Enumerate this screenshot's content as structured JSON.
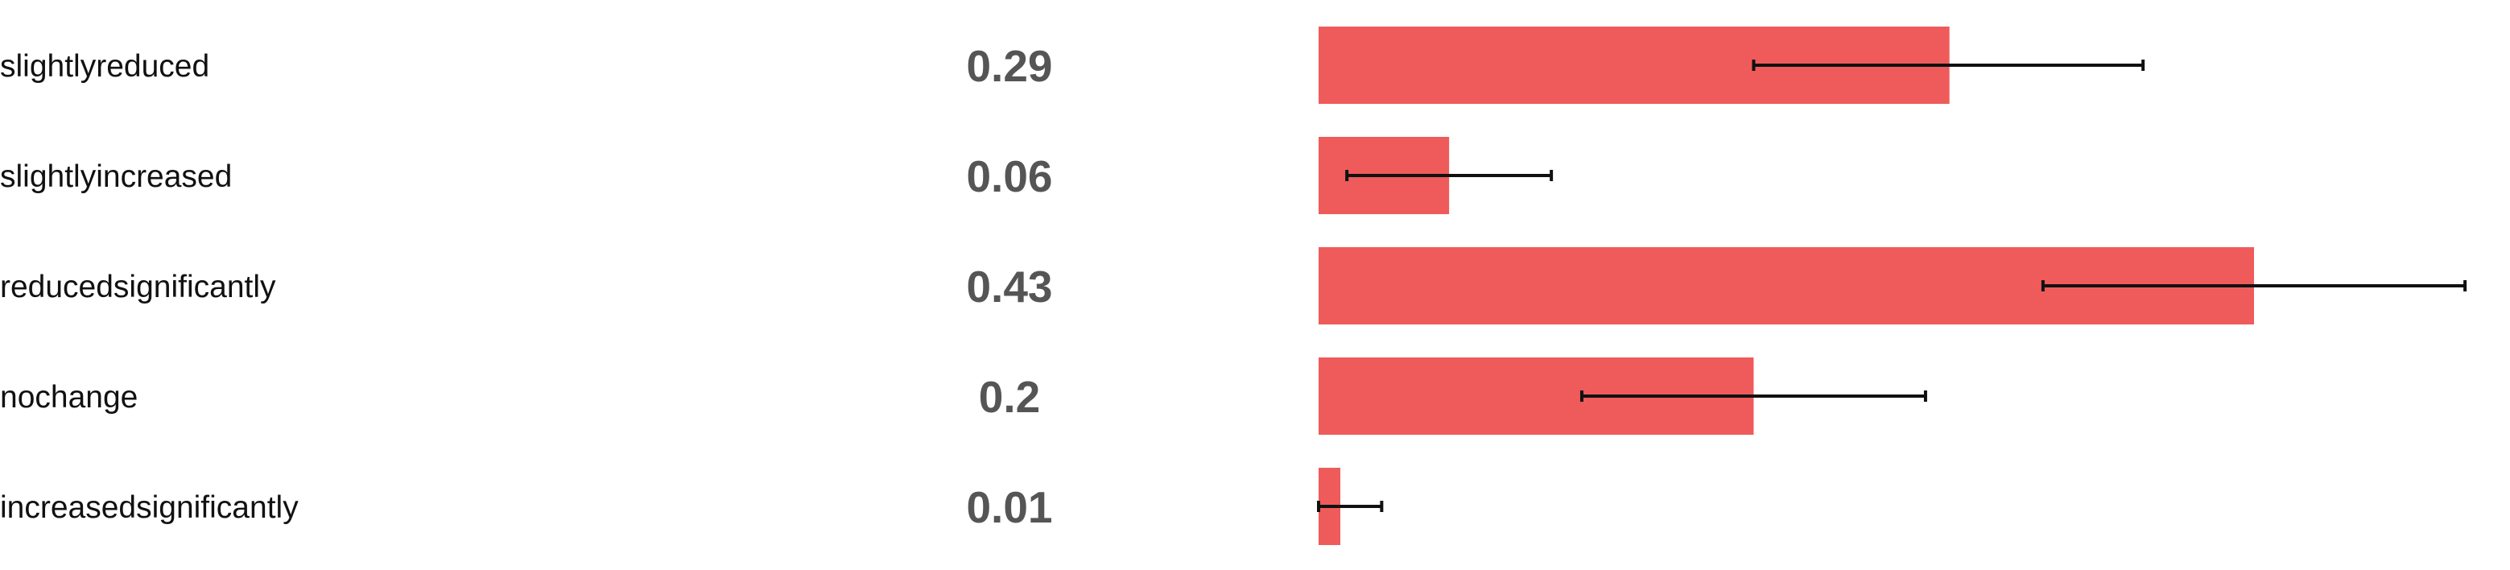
{
  "chart_data": {
    "type": "bar",
    "orientation": "horizontal",
    "title": "",
    "xlabel": "",
    "ylabel": "",
    "grid": false,
    "legend": "none",
    "bar_color": "#ef5b5b",
    "error_bar_color": "#111111",
    "xlim": [
      0,
      0.43
    ],
    "categories": [
      "slightlyreduced",
      "slightlyincreased",
      "reducedsignificantly",
      "nochange",
      "increasedsignificantly"
    ],
    "values": [
      0.29,
      0.06,
      0.43,
      0.2,
      0.01
    ],
    "value_labels": [
      "0.29",
      "0.06",
      "0.43",
      "0.2",
      "0.01"
    ],
    "error_low": [
      0.2,
      0.013,
      0.333,
      0.121,
      0.0
    ],
    "error_high": [
      0.379,
      0.107,
      0.527,
      0.279,
      0.029
    ]
  }
}
